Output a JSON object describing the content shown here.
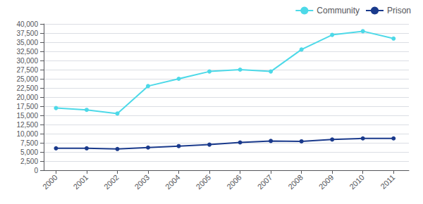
{
  "chart_data": {
    "type": "line",
    "x": [
      2000,
      2001,
      2002,
      2003,
      2004,
      2005,
      2006,
      2007,
      2008,
      2009,
      2010,
      2011
    ],
    "series": [
      {
        "name": "Community",
        "color": "#4dd9e8",
        "marker": "circle",
        "values": [
          17000,
          16500,
          15500,
          23000,
          25000,
          27000,
          27500,
          27000,
          33000,
          37000,
          38000,
          36000
        ]
      },
      {
        "name": "Prison",
        "color": "#1a3a8c",
        "marker": "circle",
        "values": [
          6000,
          6000,
          5800,
          6200,
          6600,
          7000,
          7600,
          8000,
          7900,
          8400,
          8700,
          8700
        ]
      }
    ],
    "xlim": [
      1999.6,
      2011.5
    ],
    "xticks": [
      2000,
      2001,
      2002,
      2003,
      2004,
      2005,
      2006,
      2007,
      2008,
      2009,
      2010,
      2011
    ],
    "ylim": [
      0,
      40000
    ],
    "yticks": [
      0,
      {
        "value": 2500,
        "label": "2,500"
      },
      {
        "value": 5000,
        "label": "5,000"
      },
      {
        "value": 7500,
        "label": "7,500"
      },
      {
        "value": 10000,
        "label": "10,000"
      },
      {
        "value": 12500,
        "label": "12,500"
      },
      {
        "value": 15000,
        "label": "15,000"
      },
      {
        "value": 17500,
        "label": "17,500"
      },
      {
        "value": 20000,
        "label": "20,000"
      },
      {
        "value": 22500,
        "label": "22,500"
      },
      {
        "value": 25000,
        "label": "25,000"
      },
      {
        "value": 27500,
        "label": "27,500"
      },
      {
        "value": 30000,
        "label": "30,000"
      },
      {
        "value": 32500,
        "label": "32,500"
      },
      {
        "value": 35000,
        "label": "35,000"
      },
      {
        "value": 37500,
        "label": "37,500"
      },
      {
        "value": 40000,
        "label": "40,000"
      }
    ],
    "grid": true,
    "legend": "upper right"
  }
}
